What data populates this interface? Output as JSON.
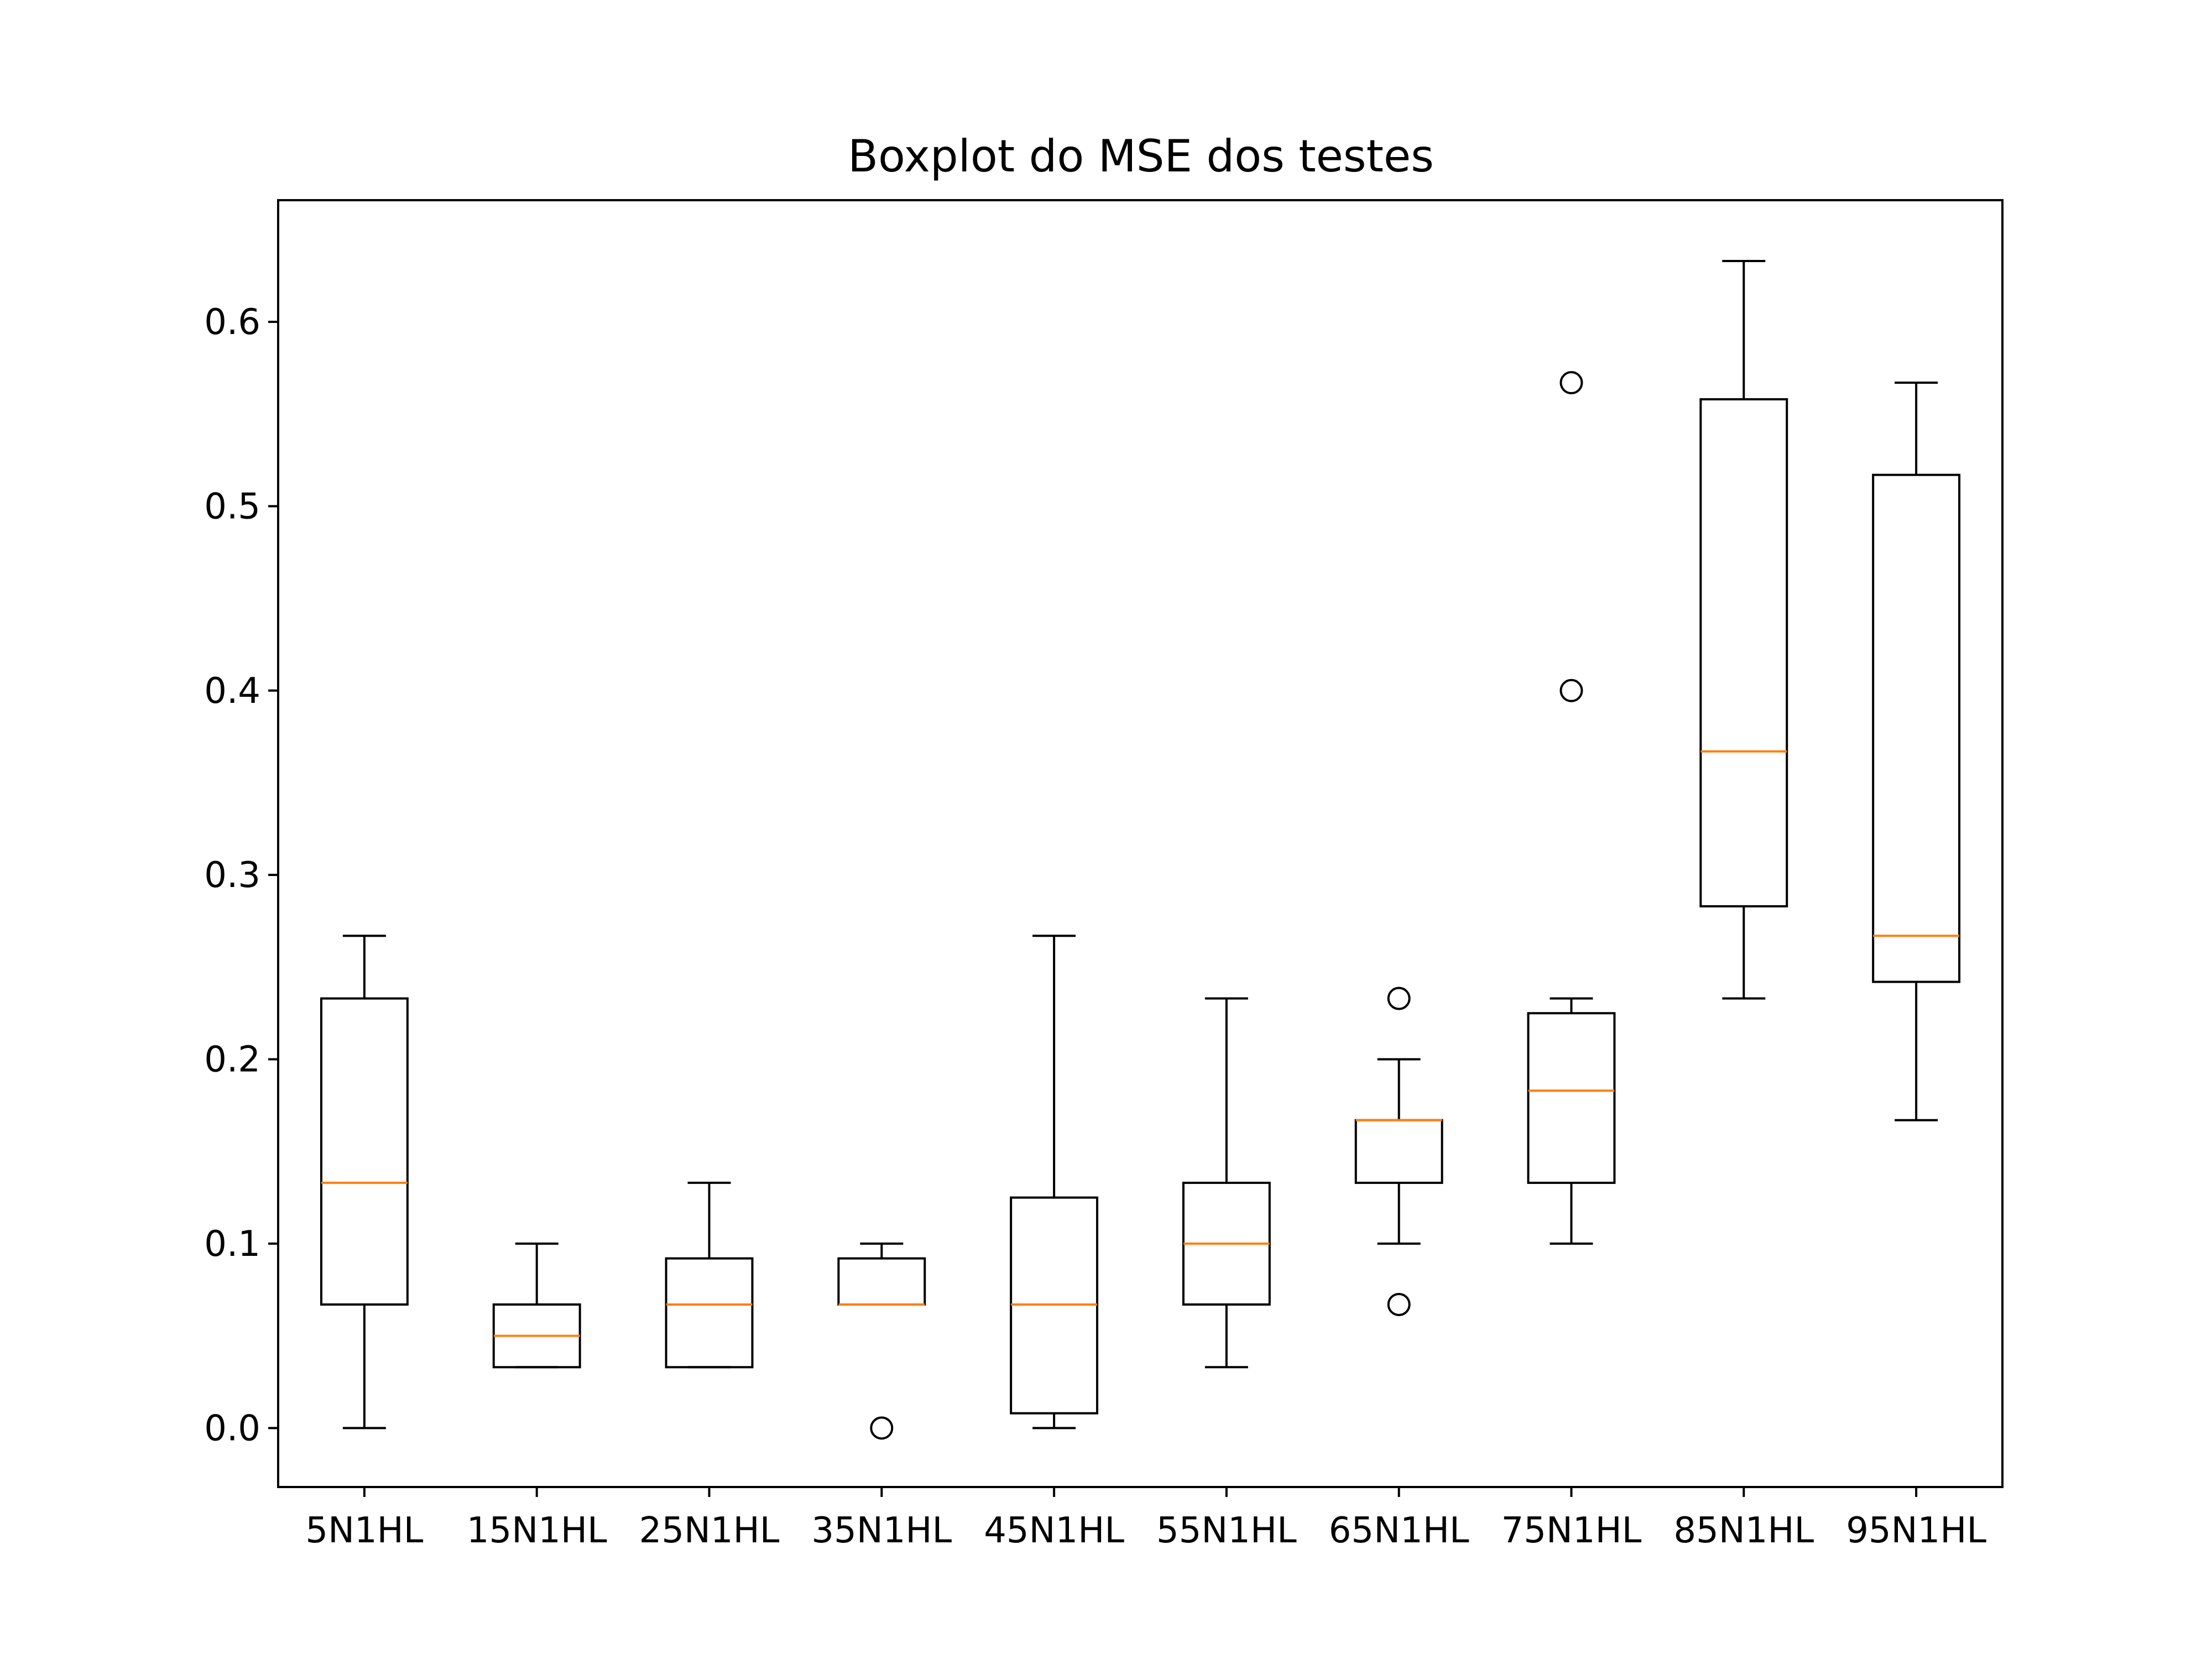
{
  "chart_data": {
    "type": "box",
    "title": "Boxplot do MSE dos testes",
    "xlabel": "",
    "ylabel": "",
    "ylim": [
      -0.032,
      0.666
    ],
    "yticks": [
      0.0,
      0.1,
      0.2,
      0.3,
      0.4,
      0.5,
      0.6
    ],
    "ytick_labels": [
      "0.0",
      "0.1",
      "0.2",
      "0.3",
      "0.4",
      "0.5",
      "0.6"
    ],
    "grid": false,
    "box_color": "#000000",
    "median_color": "#ff7f0e",
    "categories": [
      "5N1HL",
      "15N1HL",
      "25N1HL",
      "35N1HL",
      "45N1HL",
      "55N1HL",
      "65N1HL",
      "75N1HL",
      "85N1HL",
      "95N1HL"
    ],
    "boxes": [
      {
        "label": "5N1HL",
        "whisker_low": 0.0,
        "q1": 0.067,
        "median": 0.133,
        "q3": 0.233,
        "whisker_high": 0.267,
        "fliers": []
      },
      {
        "label": "15N1HL",
        "whisker_low": 0.033,
        "q1": 0.033,
        "median": 0.05,
        "q3": 0.067,
        "whisker_high": 0.1,
        "fliers": []
      },
      {
        "label": "25N1HL",
        "whisker_low": 0.033,
        "q1": 0.033,
        "median": 0.067,
        "q3": 0.092,
        "whisker_high": 0.133,
        "fliers": []
      },
      {
        "label": "35N1HL",
        "whisker_low": 0.067,
        "q1": 0.067,
        "median": 0.067,
        "q3": 0.092,
        "whisker_high": 0.1,
        "fliers": [
          0.0
        ]
      },
      {
        "label": "45N1HL",
        "whisker_low": 0.0,
        "q1": 0.008,
        "median": 0.067,
        "q3": 0.125,
        "whisker_high": 0.267,
        "fliers": []
      },
      {
        "label": "55N1HL",
        "whisker_low": 0.033,
        "q1": 0.067,
        "median": 0.1,
        "q3": 0.133,
        "whisker_high": 0.233,
        "fliers": []
      },
      {
        "label": "65N1HL",
        "whisker_low": 0.1,
        "q1": 0.133,
        "median": 0.167,
        "q3": 0.167,
        "whisker_high": 0.2,
        "fliers": [
          0.233,
          0.067
        ]
      },
      {
        "label": "75N1HL",
        "whisker_low": 0.1,
        "q1": 0.133,
        "median": 0.183,
        "q3": 0.225,
        "whisker_high": 0.233,
        "fliers": [
          0.567,
          0.4
        ]
      },
      {
        "label": "85N1HL",
        "whisker_low": 0.233,
        "q1": 0.283,
        "median": 0.367,
        "q3": 0.558,
        "whisker_high": 0.633,
        "fliers": []
      },
      {
        "label": "95N1HL",
        "whisker_low": 0.167,
        "q1": 0.242,
        "median": 0.267,
        "q3": 0.517,
        "whisker_high": 0.567,
        "fliers": []
      }
    ]
  }
}
